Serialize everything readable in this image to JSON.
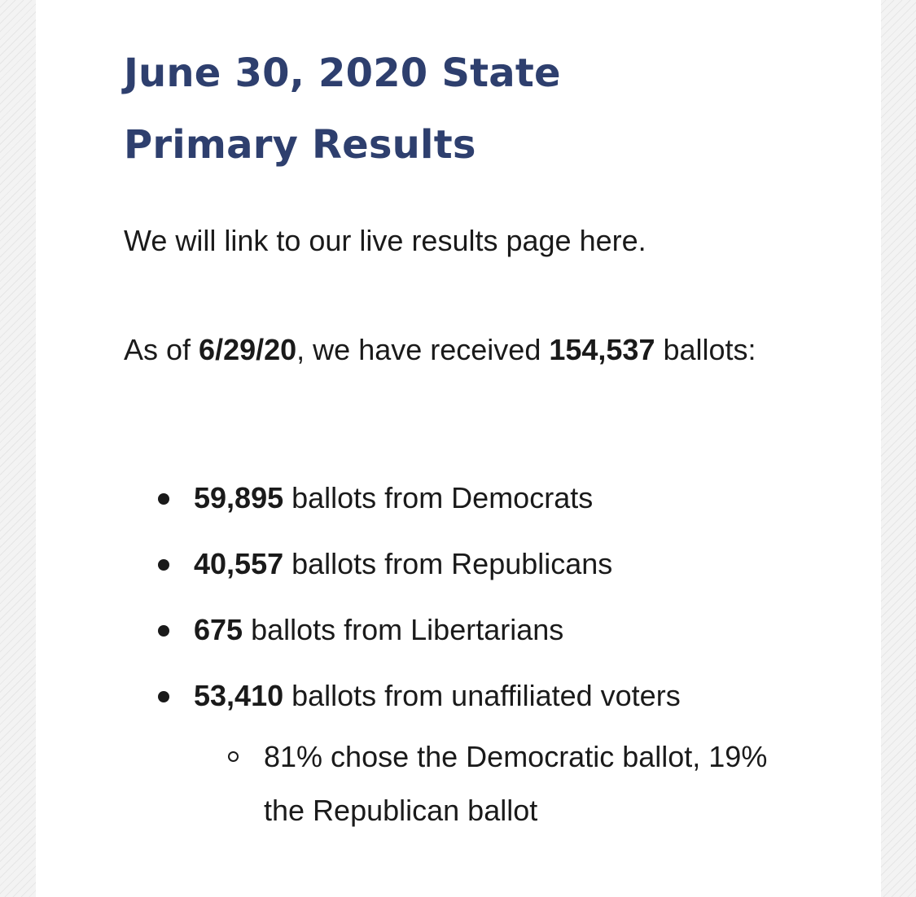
{
  "heading": {
    "title": "June 30, 2020 State Primary Results"
  },
  "intro": {
    "text": "We will link to our live results page here."
  },
  "summary": {
    "prefix": "As of ",
    "date": "6/29/20",
    "middle": ", we have received ",
    "total": "154,537",
    "suffix": " ballots:"
  },
  "ballots": [
    {
      "count": "59,895",
      "label": " ballots from Democrats"
    },
    {
      "count": "40,557",
      "label": " ballots from Republicans"
    },
    {
      "count": "675",
      "label": " ballots from Libertarians"
    },
    {
      "count": "53,410",
      "label": " ballots from unaffiliated voters"
    }
  ],
  "unaffiliated_note": {
    "text": "81% chose the Democratic ballot, 19% the Republican ballot"
  },
  "colors": {
    "title": "#2e3f6e",
    "text": "#1a1a1a"
  }
}
